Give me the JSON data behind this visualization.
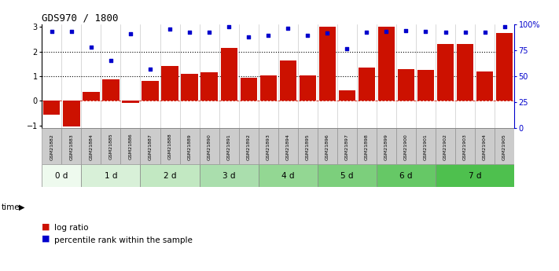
{
  "title": "GDS970 / 1800",
  "samples": [
    "GSM21882",
    "GSM21883",
    "GSM21884",
    "GSM21885",
    "GSM21886",
    "GSM21887",
    "GSM21888",
    "GSM21889",
    "GSM21890",
    "GSM21891",
    "GSM21892",
    "GSM21893",
    "GSM21894",
    "GSM21895",
    "GSM21896",
    "GSM21897",
    "GSM21898",
    "GSM21899",
    "GSM21900",
    "GSM21901",
    "GSM21902",
    "GSM21903",
    "GSM21904",
    "GSM21905"
  ],
  "log_ratio": [
    -0.55,
    -1.05,
    0.35,
    0.88,
    -0.07,
    0.82,
    1.4,
    1.08,
    1.15,
    2.15,
    0.95,
    1.02,
    1.65,
    1.02,
    3.0,
    0.42,
    1.35,
    3.0,
    1.3,
    1.25,
    2.3,
    2.3,
    1.18,
    2.75
  ],
  "percentile": [
    2.8,
    2.8,
    2.18,
    1.65,
    2.72,
    1.3,
    2.9,
    2.78,
    2.78,
    3.0,
    2.6,
    2.65,
    2.95,
    2.65,
    2.75,
    2.1,
    2.78,
    2.82,
    2.85,
    2.82,
    2.78,
    2.78,
    2.78,
    3.0
  ],
  "time_groups": [
    {
      "label": "0 d",
      "start": 0,
      "end": 2
    },
    {
      "label": "1 d",
      "start": 2,
      "end": 5
    },
    {
      "label": "2 d",
      "start": 5,
      "end": 8
    },
    {
      "label": "3 d",
      "start": 8,
      "end": 11
    },
    {
      "label": "4 d",
      "start": 11,
      "end": 14
    },
    {
      "label": "5 d",
      "start": 14,
      "end": 17
    },
    {
      "label": "6 d",
      "start": 17,
      "end": 20
    },
    {
      "label": "7 d",
      "start": 20,
      "end": 24
    }
  ],
  "time_colors": [
    "#eefaee",
    "#d8f0d8",
    "#c2e8c2",
    "#aadead",
    "#93d793",
    "#7ccf7c",
    "#66c866",
    "#4ec04e"
  ],
  "bar_color": "#cc1100",
  "dot_color": "#0000cc",
  "ylim_left": [
    -1.1,
    3.1
  ],
  "ylim_right": [
    0,
    100
  ],
  "yticks_left": [
    -1,
    0,
    1,
    2,
    3
  ],
  "yticks_right": [
    0,
    25,
    50,
    75,
    100
  ],
  "ytick_labels_right": [
    "0",
    "25",
    "50",
    "75",
    "100%"
  ],
  "dotted_lines": [
    1.0,
    2.0
  ],
  "zero_line_color": "#cc1100",
  "bg_color": "#ffffff",
  "gsm_bg": "#cccccc",
  "gsm_border": "#888888"
}
